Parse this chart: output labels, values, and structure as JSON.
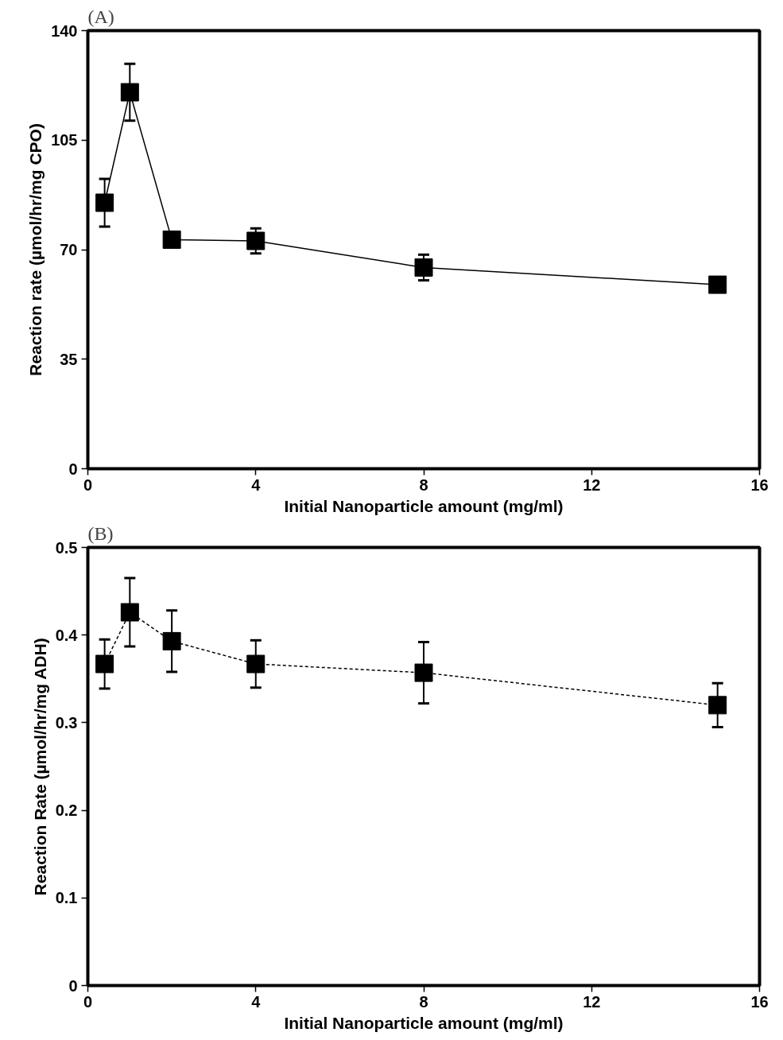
{
  "chart_data": [
    {
      "type": "line",
      "title": "(A)",
      "xlabel": "Initial Nanoparticle amount (mg/ml)",
      "ylabel": "Reaction rate (µmol/hr/mg CPO)",
      "x": [
        0.4,
        1,
        2,
        4,
        8,
        15
      ],
      "marker": "square",
      "line_style": "solid",
      "grid": false,
      "xlim": [
        0,
        16
      ],
      "xticks": [
        0,
        4,
        8,
        12,
        16
      ],
      "ylim": [
        0,
        140
      ],
      "yticks": [
        0,
        35,
        70,
        105,
        140
      ],
      "series": [
        {
          "color": "#000000",
          "values": [
            85.0,
            120.3,
            73.2,
            72.8,
            64.3,
            58.8
          ],
          "errors": [
            7.6,
            9.1,
            1,
            4,
            4.1,
            1.5
          ]
        }
      ]
    },
    {
      "type": "line",
      "title": "(B)",
      "xlabel": "Initial Nanoparticle amount (mg/ml)",
      "ylabel": "Reaction Rate (µmol/hr/mg ADH)",
      "x": [
        0.4,
        1,
        2,
        4,
        8,
        15
      ],
      "marker": "square",
      "line_style": "dashed",
      "grid": false,
      "xlim": [
        0,
        16
      ],
      "xticks": [
        0,
        4,
        8,
        12,
        16
      ],
      "ylim": [
        0,
        0.5
      ],
      "yticks": [
        0,
        0.1,
        0.2,
        0.3,
        0.4,
        0.5
      ],
      "series": [
        {
          "color": "#000000",
          "values": [
            0.367,
            0.426,
            0.393,
            0.367,
            0.357,
            0.32
          ],
          "errors": [
            0.028,
            0.039,
            0.035,
            0.027,
            0.035,
            0.025
          ]
        }
      ]
    }
  ]
}
